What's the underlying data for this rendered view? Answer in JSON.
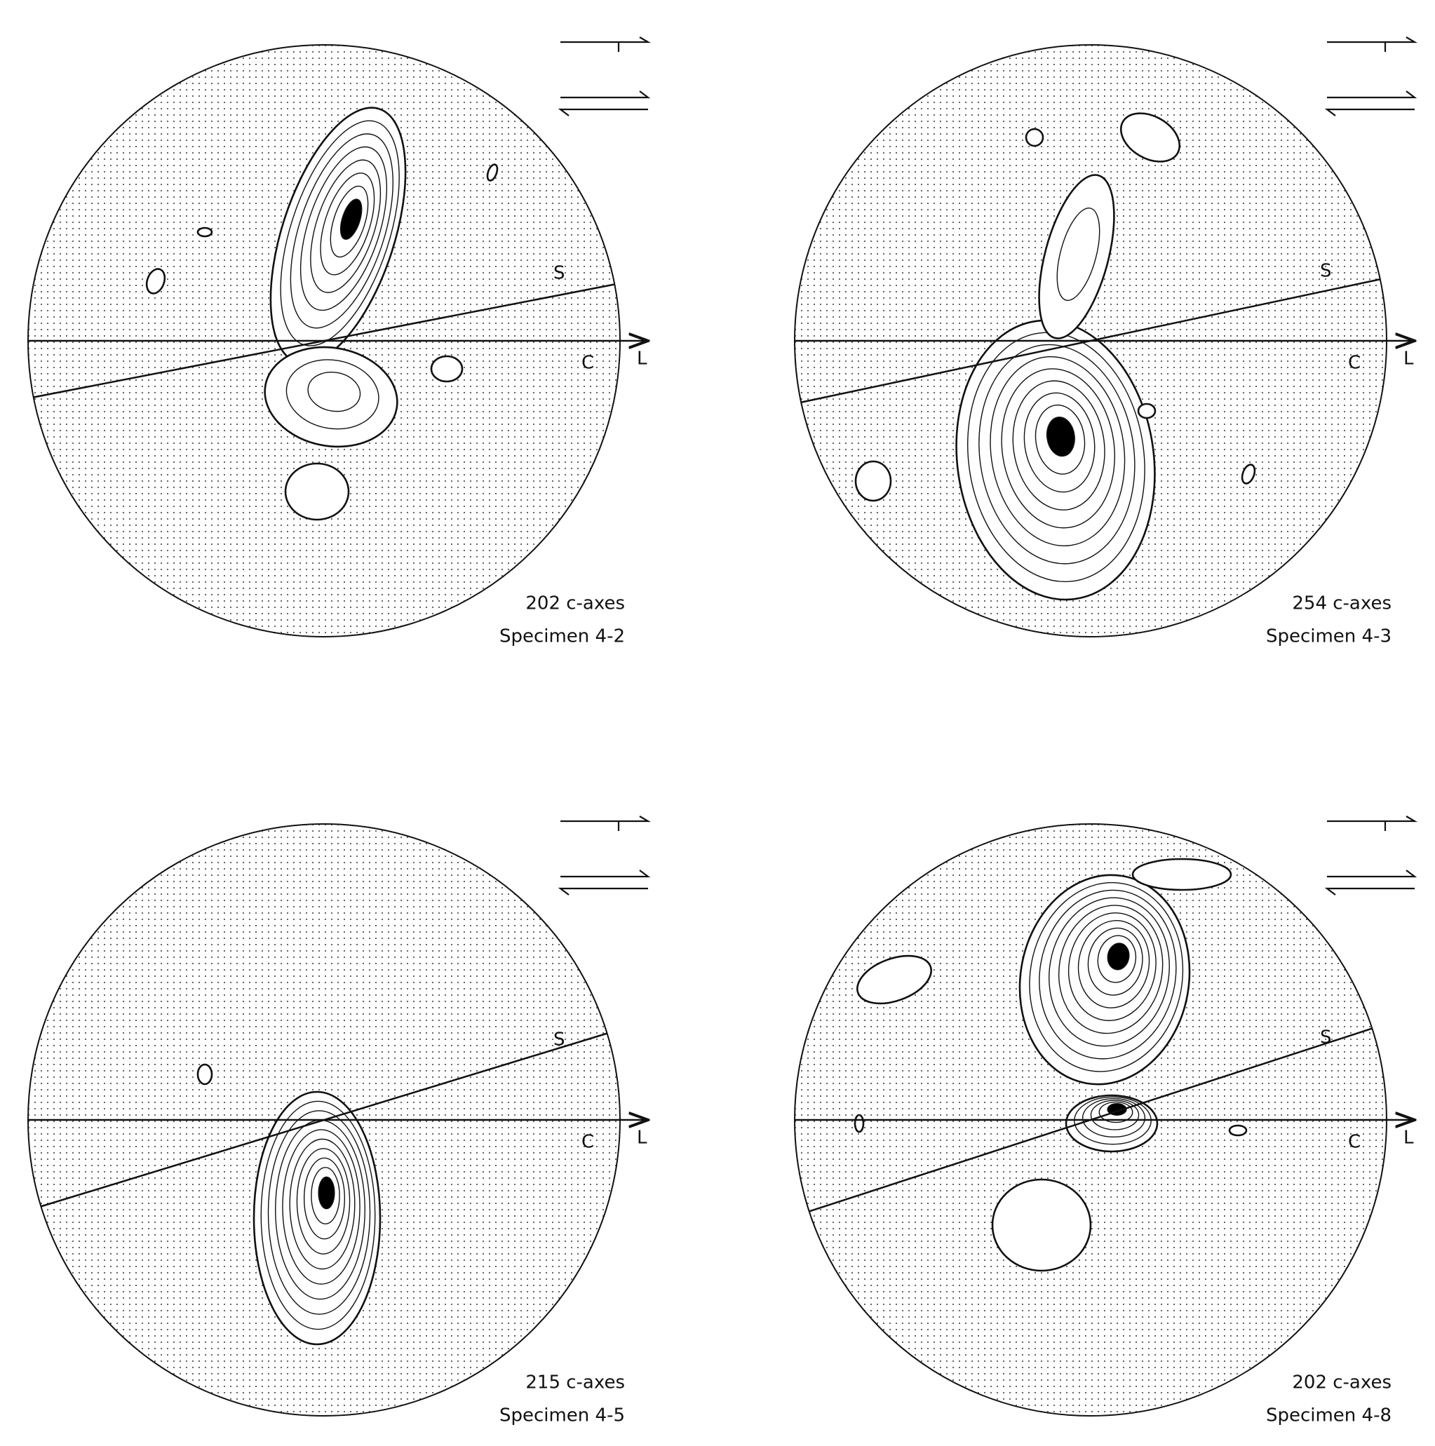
{
  "panels": [
    {
      "s_label": "S",
      "c_label": "C",
      "l_label": "L",
      "count_label": "202 c-axes",
      "specimen": "Specimen 4-2"
    },
    {
      "s_label": "S",
      "c_label": "C",
      "l_label": "L",
      "count_label": "254 c-axes",
      "specimen": "Specimen 4-3"
    },
    {
      "s_label": "S",
      "c_label": "C",
      "l_label": "L",
      "count_label": "215 c-axes",
      "specimen": "Specimen 4-5"
    },
    {
      "s_label": "S",
      "c_label": "C",
      "l_label": "L",
      "count_label": "202 c-axes",
      "specimen": "Specimen 4-8"
    }
  ]
}
